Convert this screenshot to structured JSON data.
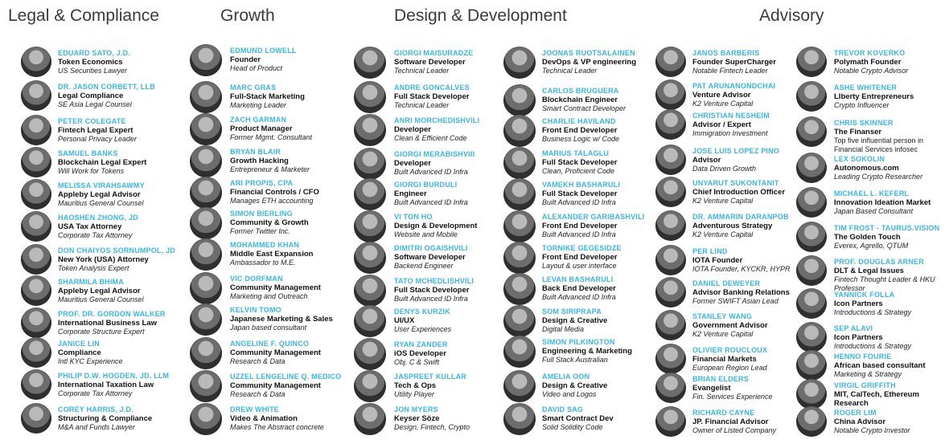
{
  "sections": {
    "legal": "Legal & Compliance",
    "growth": "Growth",
    "design": "Design & Development",
    "advisory": "Advisory"
  },
  "people": {
    "legal": [
      {
        "name": "EDUARD SATO, J.D.",
        "role": "Token Economics",
        "sub": "US Securities Lawyer"
      },
      {
        "name": "DR. JASON CORBETT, LLB",
        "role": "Legal Compliance",
        "sub": "SE Asia Legal Counsel"
      },
      {
        "name": "PETER COLEGATE",
        "role": "Fintech Legal Expert",
        "sub": "Personal Privacy Leader"
      },
      {
        "name": "SAMUEL BANKS",
        "role": "Blockchain Legal Expert",
        "sub": "Will Work for Tokens"
      },
      {
        "name": "MELISSA VIRAHSAWMY",
        "role": "Appleby Legal Advisor",
        "sub": "Mauritius General Counsel"
      },
      {
        "name": "HAOSHEN ZHONG, JD",
        "role": "USA Tax Attorney",
        "sub": "Corporate Tax Attorney"
      },
      {
        "name": "DON CHAIYOS SORNUMPOL, JD",
        "role": "New York (USA) Attorney",
        "sub": "Token Analysis Expert"
      },
      {
        "name": "SHARMILA BHIMA",
        "role": "Appleby Legal Advisor",
        "sub": "Mauritius General Counsel"
      },
      {
        "name": "PROF. DR. GORDON WALKER",
        "role": "International Business Law",
        "sub": "Corporate Structure Expert"
      },
      {
        "name": "JANICE LIN",
        "role": "Compliance",
        "sub": "Intl KYC Experience"
      },
      {
        "name": "PHILIP D.W. HOGDEN, JD, LLM",
        "role": "International Taxation Law",
        "sub": "Corporate Tax Attorney"
      },
      {
        "name": "COREY HARRIS, J.D.",
        "role": "Structuring & Compliance",
        "sub": "M&A and Funds Lawyer"
      }
    ],
    "growth": [
      {
        "name": "EDMUND LOWELL",
        "role": "Founder",
        "sub": "Head of Product"
      },
      {
        "name": "MARC GRAS",
        "role": "Full-Stack Marketing",
        "sub": "Marketing Leader"
      },
      {
        "name": "ZACH GARMAN",
        "role": "Product Manager",
        "sub": "Former Mgmt. Consultant"
      },
      {
        "name": "BRYAN BLAIR",
        "role": "Growth Hacking",
        "sub": "Entrepreneur & Marketer"
      },
      {
        "name": "ARI PROPIS, CPA",
        "role": "Financial Controls / CFO",
        "sub": "Manages ETH accounting"
      },
      {
        "name": "SIMON BIERLING",
        "role": "Community & Growth",
        "sub": "Former Twitter Inc."
      },
      {
        "name": "MOHAMMED KHAN",
        "role": "Middle East Expansion",
        "sub": "Ambassador to M.E."
      },
      {
        "name": "VIC DORFMAN",
        "role": "Community Management",
        "sub": "Marketing and Outreach"
      },
      {
        "name": "KELVIN TOMO",
        "role": "Japanese Marketing & Sales",
        "sub": "Japan based consultant"
      },
      {
        "name": "ANGELINE F. QUINCO",
        "role": "Community Management",
        "sub": "Research & Data"
      },
      {
        "name": "UZZEL LENGELINE Q. MEDICO",
        "role": "Community Management",
        "sub": "Research & Data"
      },
      {
        "name": "DREW WHITE",
        "role": "Video & Animation",
        "sub": "Makes The Abstract concrete"
      }
    ],
    "design1": [
      {
        "name": "GIORGI MAISURADZE",
        "role": "Software Developer",
        "sub": "Technical Leader"
      },
      {
        "name": "ANDRE GONCALVES",
        "role": "Full Stack Developer",
        "sub": "Technical Leader"
      },
      {
        "name": "ANRI MORCHEDISHVILI",
        "role": "Developer",
        "sub": "Clean & Efficient Code"
      },
      {
        "name": "GIORGI MERABISHVIII",
        "role": "Developer",
        "sub": "Built Advanced ID Infra"
      },
      {
        "name": "GIORGI BURDULI",
        "role": "Engineer",
        "sub": "Built Advanced ID Infra"
      },
      {
        "name": "VI TON HO",
        "role": "Design & Development",
        "sub": "Website and Mobile"
      },
      {
        "name": "DIMITRI OGAISHVILI",
        "role": "Software Developer",
        "sub": "Backend Engineer"
      },
      {
        "name": "TATO MCHEDLISHVILI",
        "role": "Full Stack Developer",
        "sub": "Built Advanced ID Infra"
      },
      {
        "name": "DENYS KURZIK",
        "role": "UI/UX",
        "sub": "User Experiences"
      },
      {
        "name": "RYAN ZANDER",
        "role": "iOS Developer",
        "sub": "Obj. C & Swift"
      },
      {
        "name": "JASPREET KULLAR",
        "role": "Tech & Ops",
        "sub": "Utility Player"
      },
      {
        "name": "JON MYERS",
        "role": "Keyser Söze",
        "sub": "Design, Fintech, Crypto"
      }
    ],
    "design2": [
      {
        "name": "JOONAS RUOTSALAINEN",
        "role": "DevOps & VP engineering",
        "sub": "Technical Leader"
      },
      {
        "name": "CARLOS BRUGUERA",
        "role": "Blockchain Engineer",
        "sub": "Smart Contract Developer"
      },
      {
        "name": "CHARLIE HAVILAND",
        "role": "Front End Developer",
        "sub": "Business Logic w/ Code"
      },
      {
        "name": "MARIUS TALAGLU",
        "role": "Full Stack Developer",
        "sub": "Clean, Proficient Code"
      },
      {
        "name": "VAMEKH BASHARULI",
        "role": "Full Stack Developer",
        "sub": "Built Advanced ID Infra"
      },
      {
        "name": "ALEXANDER GARIBASHVILI",
        "role": "Front End Developer",
        "sub": "Built Advanced ID Infra"
      },
      {
        "name": "TORNIKE GEGESIDZE",
        "role": "Front End Developer",
        "sub": "Layout & user interface"
      },
      {
        "name": "LEVAN BASHARULI",
        "role": "Back End Developer",
        "sub": "Built Advanced ID Infra"
      },
      {
        "name": "SOM SIRIPRAPA",
        "role": "Design & Creative",
        "sub": "Digital Media"
      },
      {
        "name": "SIMON PILKINGTON",
        "role": "Engineering & Marketing",
        "sub": "Full Stack Australian"
      },
      {
        "name": "AMELIA OON",
        "role": "Design & Creative",
        "sub": "Video and Logos"
      },
      {
        "name": "DAVID SAG",
        "role": "Smart Contract Dev",
        "sub": "Solid Solidity Code"
      }
    ],
    "advisory1": [
      {
        "name": "JANOS BARBERIS",
        "role": "Founder SuperCharger",
        "sub": "Notable Fintech Leader"
      },
      {
        "name": "PAT ARUNANONDCHAI",
        "role": "Venture Advisor",
        "sub": "K2 Venture Capital"
      },
      {
        "name": "CHRISTIAN NESHEIM",
        "role": "Advisor / Expert",
        "sub": "Immigration Investment"
      },
      {
        "name": "JOSE LUIS LOPEZ PINO",
        "role": "Advisor",
        "sub": "Data Driven Growth"
      },
      {
        "name": "UNYARUT SUKONTANIT",
        "role": "Chief Introduction Officer",
        "sub": "K2 Venture Capital"
      },
      {
        "name": "DR. AMMARIN DARANPOB",
        "role": "Adventurous Strategy",
        "sub": "K2 Venture Capital"
      },
      {
        "name": "PER LIND",
        "role": "IOTA Founder",
        "sub": "IOTA Founder, KYCKR, HYPR"
      },
      {
        "name": "DANIEL DEWEYER",
        "role": "Advisor Banking Relations",
        "sub": "Former SWIFT Asian Lead"
      },
      {
        "name": "STANLEY WANG",
        "role": "Government Advisor",
        "sub": "K2 Venture Capital"
      },
      {
        "name": "OLIVIER ROUCLOUX",
        "role": "Financial Markets",
        "sub": "European Region Lead"
      },
      {
        "name": "BRIAN ELDERS",
        "role": "Evangelist",
        "sub": "Fin. Services Experience"
      },
      {
        "name": "RICHARD CAYNE",
        "role": "JP. Financial Advisor",
        "sub": "Owner of Listed Company"
      }
    ],
    "advisory2": [
      {
        "name": "TREVOR KOVERKO",
        "role": "Polymath Founder",
        "sub": "Notable Crypto Advisor"
      },
      {
        "name": "ASHE WHITENER",
        "role": "LIberty Entrepreneurs",
        "sub": "Crypto Influencer"
      },
      {
        "name": "CHRIS SKINNER",
        "role": "The Finanser",
        "sub": "Top five influential person in",
        "sub2": "Financial Services infosec"
      },
      {
        "name": "LEX SOKOLIN",
        "role": "Autonomous.com",
        "sub": "Leading Crypto Researcher"
      },
      {
        "name": "MICHAEL L. KEFERL",
        "role": "Innovation Ideation Market",
        "sub": "Japan Based Consultant"
      },
      {
        "name": "TIM FROST - TAURUS.VISION",
        "role": "The Golden Touch",
        "sub": "Everex, Agrello, QTUM"
      },
      {
        "name": "PROF. DOUGLAS ARNER",
        "role": "DLT & Legal Issues",
        "sub": "Fintech Thought Leader & HKU",
        "sub2": "Professor"
      },
      {
        "name": "YANNICK FOLLA",
        "role": "Icon Partners",
        "sub": "Introductions & Strategy"
      },
      {
        "name": "SEP ALAVI",
        "role": "Icon Partners",
        "sub": "Introductions & Strategy"
      },
      {
        "name": "HENNO FOURIE",
        "role": "African based consultant",
        "sub": "Marketing & Strategy"
      },
      {
        "name": "VIRGIL GRIFFITH",
        "role": "MIT, CalTech, Ethereum",
        "role2": "Research"
      },
      {
        "name": "ROGER LIM",
        "role": "China Advisor",
        "sub": "Notable Crypto Investor"
      }
    ]
  }
}
